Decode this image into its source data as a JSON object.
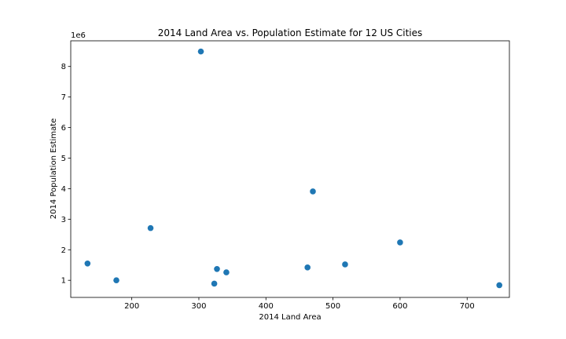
{
  "chart_data": {
    "type": "scatter",
    "title": "2014 Land Area vs. Population Estimate for 12 US Cities",
    "xlabel": "2014 Land Area",
    "ylabel": "2014 Population Estimate",
    "y_offset_label": "1e6",
    "xlim": [
      109,
      763
    ],
    "ylim": [
      0.44,
      8.84
    ],
    "y_scale_factor": 1000000,
    "x_ticks": [
      200,
      300,
      400,
      500,
      600,
      700
    ],
    "y_ticks": [
      1,
      2,
      3,
      4,
      5,
      6,
      7,
      8
    ],
    "x_tick_labels": [
      "200",
      "300",
      "400",
      "500",
      "600",
      "700"
    ],
    "y_tick_labels": [
      "1",
      "2",
      "3",
      "4",
      "5",
      "6",
      "7",
      "8"
    ],
    "grid": false,
    "marker_color": "#1f77b4",
    "points": [
      {
        "x": 134,
        "y": 1.55
      },
      {
        "x": 177,
        "y": 1.0
      },
      {
        "x": 228,
        "y": 2.71
      },
      {
        "x": 303,
        "y": 8.49
      },
      {
        "x": 323,
        "y": 0.89
      },
      {
        "x": 327,
        "y": 1.37
      },
      {
        "x": 341,
        "y": 1.26
      },
      {
        "x": 462,
        "y": 1.42
      },
      {
        "x": 470,
        "y": 3.91
      },
      {
        "x": 518,
        "y": 1.52
      },
      {
        "x": 600,
        "y": 2.24
      },
      {
        "x": 748,
        "y": 0.84
      }
    ]
  }
}
